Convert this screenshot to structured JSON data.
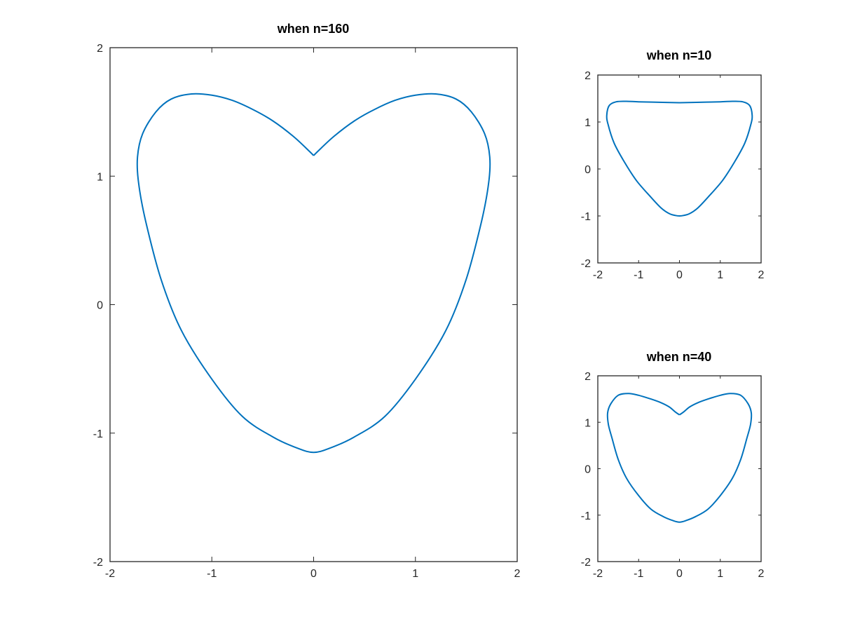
{
  "chart_data": [
    {
      "type": "line",
      "title": "when n=160",
      "n": 160,
      "xlim": [
        -2,
        2
      ],
      "ylim": [
        -2,
        2
      ],
      "xticks": [
        "-2",
        "-1",
        "0",
        "1",
        "2"
      ],
      "yticks": [
        "-2",
        "-1",
        "0",
        "1",
        "2"
      ],
      "grid": false,
      "series": [
        {
          "color": "#0072bd",
          "x": [
            0,
            0.05,
            0.2,
            0.4,
            0.6,
            0.8,
            1.0,
            1.2,
            1.4,
            1.55,
            1.68,
            1.73,
            1.72,
            1.65,
            1.5,
            1.3,
            1.0,
            0.7,
            0.4,
            0.15,
            0,
            -0.15,
            -0.4,
            -0.7,
            -1.0,
            -1.3,
            -1.5,
            -1.65,
            -1.72,
            -1.73,
            -1.68,
            -1.55,
            -1.4,
            -1.2,
            -1.0,
            -0.8,
            -0.6,
            -0.4,
            -0.2,
            -0.05,
            0
          ],
          "y": [
            1.16,
            1.2,
            1.31,
            1.43,
            1.52,
            1.59,
            1.63,
            1.64,
            1.6,
            1.5,
            1.33,
            1.15,
            0.95,
            0.65,
            0.2,
            -0.2,
            -0.58,
            -0.87,
            -1.03,
            -1.12,
            -1.15,
            -1.12,
            -1.03,
            -0.87,
            -0.58,
            -0.2,
            0.2,
            0.65,
            0.95,
            1.15,
            1.33,
            1.5,
            1.6,
            1.64,
            1.63,
            1.59,
            1.52,
            1.43,
            1.31,
            1.2,
            1.16
          ]
        }
      ]
    },
    {
      "type": "line",
      "title": "when n=10",
      "n": 10,
      "xlim": [
        -2,
        2
      ],
      "ylim": [
        -2,
        2
      ],
      "xticks": [
        "-2",
        "-1",
        "0",
        "1",
        "2"
      ],
      "yticks": [
        "-2",
        "-1",
        "0",
        "1",
        "2"
      ],
      "grid": false,
      "series": [
        {
          "color": "#0072bd",
          "x": [
            0,
            0.5,
            1.0,
            1.3,
            1.55,
            1.72,
            1.78,
            1.75,
            1.6,
            1.35,
            1.05,
            0.7,
            0.45,
            0.25,
            0.1,
            0,
            -0.1,
            -0.25,
            -0.45,
            -0.7,
            -1.05,
            -1.35,
            -1.6,
            -1.75,
            -1.78,
            -1.72,
            -1.55,
            -1.3,
            -1.0,
            -0.5,
            0
          ],
          "y": [
            1.41,
            1.42,
            1.43,
            1.44,
            1.43,
            1.35,
            1.15,
            0.95,
            0.55,
            0.15,
            -0.25,
            -0.6,
            -0.83,
            -0.95,
            -0.99,
            -1.0,
            -0.99,
            -0.95,
            -0.83,
            -0.6,
            -0.25,
            0.15,
            0.55,
            0.95,
            1.15,
            1.35,
            1.43,
            1.44,
            1.43,
            1.42,
            1.41
          ]
        }
      ]
    },
    {
      "type": "line",
      "title": "when n=40",
      "n": 40,
      "xlim": [
        -2,
        2
      ],
      "ylim": [
        -2,
        2
      ],
      "xticks": [
        "-2",
        "-1",
        "0",
        "1",
        "2"
      ],
      "yticks": [
        "-2",
        "-1",
        "0",
        "1",
        "2"
      ],
      "grid": false,
      "series": [
        {
          "color": "#0072bd",
          "x": [
            0,
            0.1,
            0.25,
            0.45,
            0.7,
            1.0,
            1.25,
            1.5,
            1.68,
            1.76,
            1.74,
            1.65,
            1.5,
            1.3,
            1.0,
            0.7,
            0.4,
            0.15,
            0,
            -0.15,
            -0.4,
            -0.7,
            -1.0,
            -1.3,
            -1.5,
            -1.65,
            -1.74,
            -1.76,
            -1.68,
            -1.5,
            -1.25,
            -1.0,
            -0.7,
            -0.45,
            -0.25,
            -0.1,
            0
          ],
          "y": [
            1.16,
            1.22,
            1.33,
            1.42,
            1.5,
            1.58,
            1.62,
            1.58,
            1.4,
            1.2,
            0.95,
            0.65,
            0.2,
            -0.2,
            -0.58,
            -0.87,
            -1.03,
            -1.12,
            -1.15,
            -1.12,
            -1.03,
            -0.87,
            -0.58,
            -0.2,
            0.2,
            0.65,
            0.95,
            1.2,
            1.4,
            1.58,
            1.62,
            1.58,
            1.5,
            1.42,
            1.33,
            1.22,
            1.16
          ]
        }
      ]
    }
  ]
}
